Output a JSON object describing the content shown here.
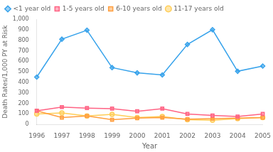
{
  "chart_data": {
    "type": "line",
    "xlabel": "Year",
    "ylabel": "Death Rates/1,000 PY at Risk",
    "categories": [
      "1996",
      "1997",
      "1998",
      "1999",
      "2000",
      "2001",
      "2002",
      "2003",
      "2004",
      "2005"
    ],
    "series": [
      {
        "name": "<1 year old",
        "marker": "diamond",
        "line_style": "solid",
        "values": [
          450,
          810,
          895,
          540,
          490,
          470,
          760,
          900,
          505,
          555
        ]
      },
      {
        "name": "1-5 years old",
        "marker": "square",
        "line_style": "solid",
        "values": [
          130,
          165,
          155,
          150,
          125,
          150,
          100,
          85,
          75,
          100
        ]
      },
      {
        "name": "6-10 years old",
        "marker": "square",
        "line_style": "solid",
        "values": [
          130,
          65,
          80,
          45,
          60,
          65,
          50,
          55,
          60,
          65
        ]
      },
      {
        "name": "11-17 years old",
        "marker": "circle",
        "line_style": "solid",
        "values": [
          100,
          110,
          80,
          95,
          65,
          75,
          45,
          40,
          55,
          65
        ]
      }
    ],
    "ylim": [
      0,
      1000
    ],
    "yticks": [
      0,
      100,
      200,
      300,
      400,
      500,
      600,
      700,
      800,
      900,
      {
        "value": 1000,
        "label": "1,000"
      }
    ],
    "grid": false,
    "legend": "top"
  }
}
